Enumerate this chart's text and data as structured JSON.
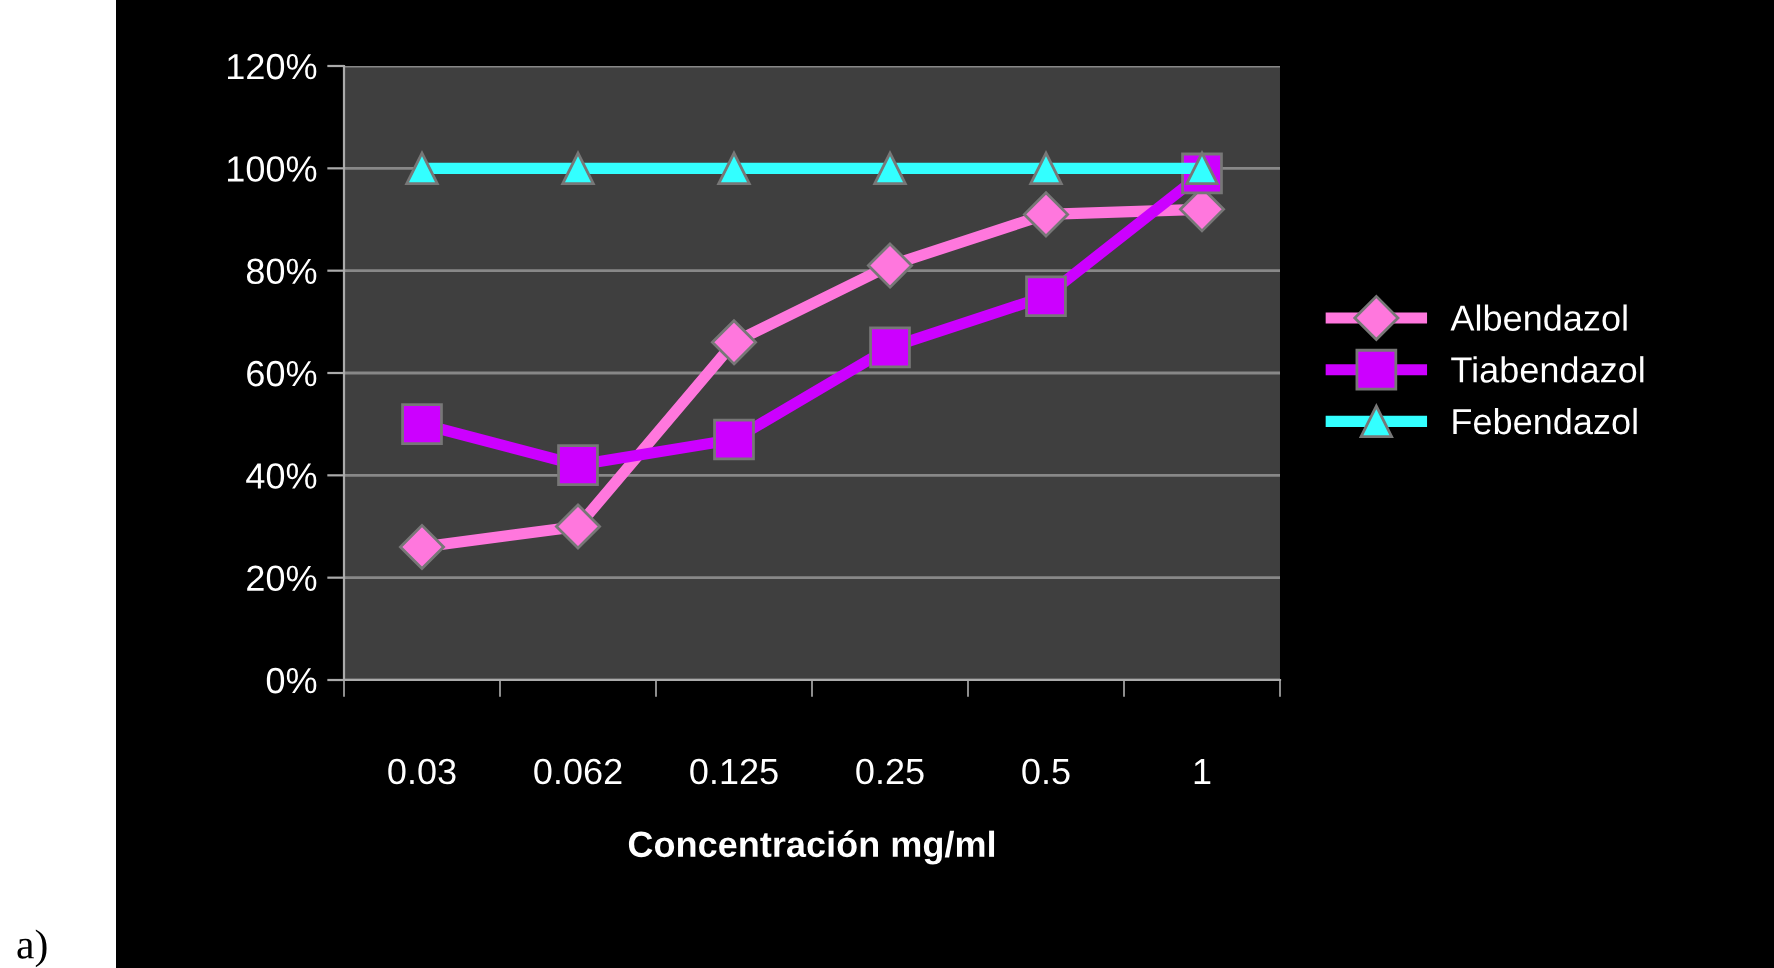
{
  "chart_data": {
    "type": "line",
    "xlabel": "Concentración mg/ml",
    "categories": [
      "0.03",
      "0.062",
      "0.125",
      "0.25",
      "0.5",
      "1"
    ],
    "series": [
      {
        "name": "Albendazol",
        "color": "#ff77dd",
        "marker": "diamond",
        "values": [
          26,
          30,
          66,
          81,
          91,
          92
        ]
      },
      {
        "name": "Tiabendazol",
        "color": "#cc00ff",
        "marker": "square",
        "values": [
          50,
          42,
          47,
          65,
          75,
          99
        ]
      },
      {
        "name": "Febendazol",
        "color": "#33ffff",
        "marker": "triangle",
        "values": [
          100,
          100,
          100,
          100,
          100,
          100
        ]
      }
    ],
    "ylim": [
      0,
      120
    ],
    "yticks": [
      {
        "value": 0,
        "label": "0%"
      },
      {
        "value": 20,
        "label": "20%"
      },
      {
        "value": 40,
        "label": "40%"
      },
      {
        "value": 60,
        "label": "60%"
      },
      {
        "value": 80,
        "label": "80%"
      },
      {
        "value": 100,
        "label": "100%"
      },
      {
        "value": 120,
        "label": "120%"
      }
    ],
    "grid": "y",
    "legend": "right",
    "annotations": [
      "a)"
    ]
  }
}
